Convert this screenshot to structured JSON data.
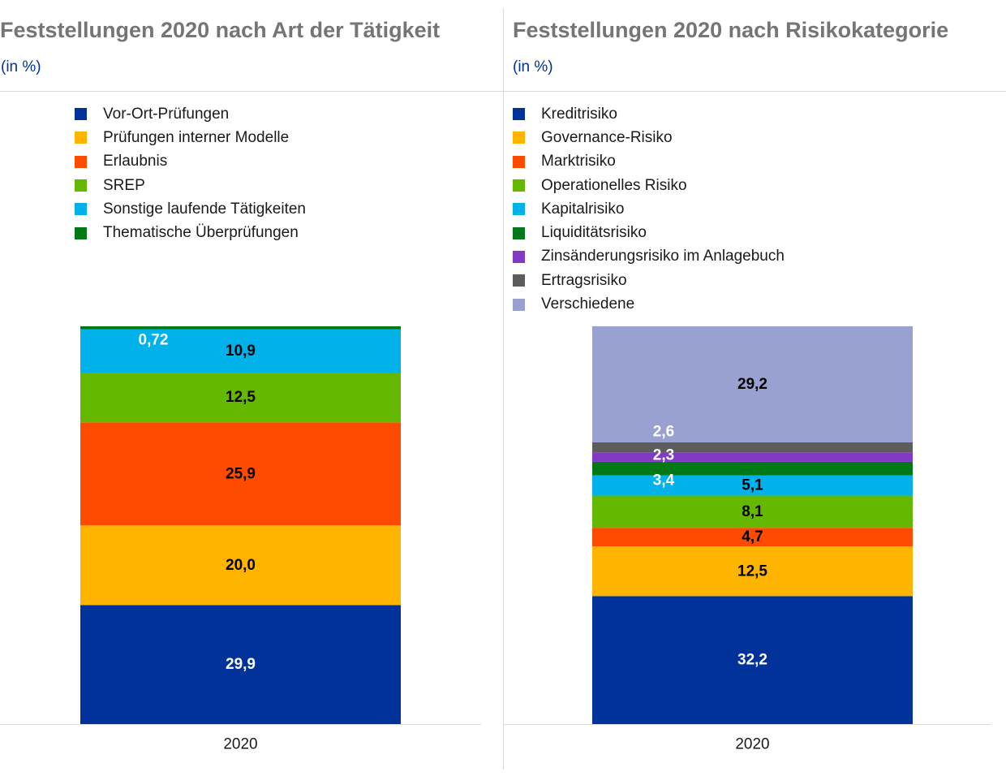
{
  "colors": {
    "title": "#757575",
    "subtitle": "#003299",
    "axis": "#d9d9d9"
  },
  "left": {
    "title": "Feststellungen 2020 nach Art der Tätigkeit",
    "subtitle": "(in %)",
    "legend": [
      {
        "label": "Vor-Ort-Prüfungen",
        "color": "#003299"
      },
      {
        "label": "Prüfungen interner Modelle",
        "color": "#FFB400"
      },
      {
        "label": "Erlaubnis",
        "color": "#FF4B00"
      },
      {
        "label": "SREP",
        "color": "#65B800"
      },
      {
        "label": "Sonstige laufende Tätigkeiten",
        "color": "#00B1EA"
      },
      {
        "label": "Thematische Überprüfungen",
        "color": "#007816"
      }
    ]
  },
  "right": {
    "title": "Feststellungen 2020 nach Risikokategorie",
    "subtitle": "(in %)",
    "legend": [
      {
        "label": "Kreditrisiko",
        "color": "#003299"
      },
      {
        "label": "Governance-Risiko",
        "color": "#FFB400"
      },
      {
        "label": "Marktrisiko",
        "color": "#FF4B00"
      },
      {
        "label": "Operationelles Risiko",
        "color": "#65B800"
      },
      {
        "label": "Kapitalrisiko",
        "color": "#00B1EA"
      },
      {
        "label": "Liquiditätsrisiko",
        "color": "#007816"
      },
      {
        "label": "Zinsänderungsrisiko im Anlagebuch",
        "color": "#8139C6"
      },
      {
        "label": "Ertragsrisiko",
        "color": "#5C5C5C"
      },
      {
        "label": "Verschiedene",
        "color": "#98A1D0"
      }
    ]
  },
  "chart_data": [
    {
      "type": "bar",
      "stacked": true,
      "title": "Feststellungen 2020 nach Art der Tätigkeit",
      "subtitle": "(in %)",
      "categories": [
        "2020"
      ],
      "series": [
        {
          "name": "Vor-Ort-Prüfungen",
          "values": [
            29.9
          ],
          "label": "29,9",
          "color": "#003299",
          "label_color": "#ffffff"
        },
        {
          "name": "Prüfungen interner Modelle",
          "values": [
            20.0
          ],
          "label": "20,0",
          "color": "#FFB400",
          "label_color": "#000000"
        },
        {
          "name": "Erlaubnis",
          "values": [
            25.9
          ],
          "label": "25,9",
          "color": "#FF4B00",
          "label_color": "#000000"
        },
        {
          "name": "SREP",
          "values": [
            12.5
          ],
          "label": "12,5",
          "color": "#65B800",
          "label_color": "#000000"
        },
        {
          "name": "Sonstige laufende Tätigkeiten",
          "values": [
            10.9
          ],
          "label": "10,9",
          "color": "#00B1EA",
          "label_color": "#000000"
        },
        {
          "name": "Thematische Überprüfungen",
          "values": [
            0.72
          ],
          "label": "0,72",
          "color": "#007816",
          "label_color": "#ffffff"
        }
      ],
      "ylim": [
        0,
        100
      ],
      "grid": false,
      "legend": "top-left"
    },
    {
      "type": "bar",
      "stacked": true,
      "title": "Feststellungen 2020 nach Risikokategorie",
      "subtitle": "(in %)",
      "categories": [
        "2020"
      ],
      "series": [
        {
          "name": "Kreditrisiko",
          "values": [
            32.2
          ],
          "label": "32,2",
          "color": "#003299",
          "label_color": "#ffffff"
        },
        {
          "name": "Governance-Risiko",
          "values": [
            12.5
          ],
          "label": "12,5",
          "color": "#FFB400",
          "label_color": "#000000"
        },
        {
          "name": "Marktrisiko",
          "values": [
            4.7
          ],
          "label": "4,7",
          "color": "#FF4B00",
          "label_color": "#000000"
        },
        {
          "name": "Operationelles Risiko",
          "values": [
            8.1
          ],
          "label": "8,1",
          "color": "#65B800",
          "label_color": "#000000"
        },
        {
          "name": "Kapitalrisiko",
          "values": [
            5.1
          ],
          "label": "5,1",
          "color": "#00B1EA",
          "label_color": "#000000"
        },
        {
          "name": "Liquiditätsrisiko",
          "values": [
            3.4
          ],
          "label": "3,4",
          "color": "#007816",
          "label_color": "#ffffff"
        },
        {
          "name": "Zinsänderungsrisiko im Anlagebuch",
          "values": [
            2.3
          ],
          "label": "2,3",
          "color": "#8139C6",
          "label_color": "#ffffff"
        },
        {
          "name": "Ertragsrisiko",
          "values": [
            2.6
          ],
          "label": "2,6",
          "color": "#5C5C5C",
          "label_color": "#ffffff"
        },
        {
          "name": "Verschiedene",
          "values": [
            29.2
          ],
          "label": "29,2",
          "color": "#98A1D0",
          "label_color": "#000000"
        }
      ],
      "ylim": [
        0,
        100
      ],
      "grid": false,
      "legend": "top-left"
    }
  ]
}
